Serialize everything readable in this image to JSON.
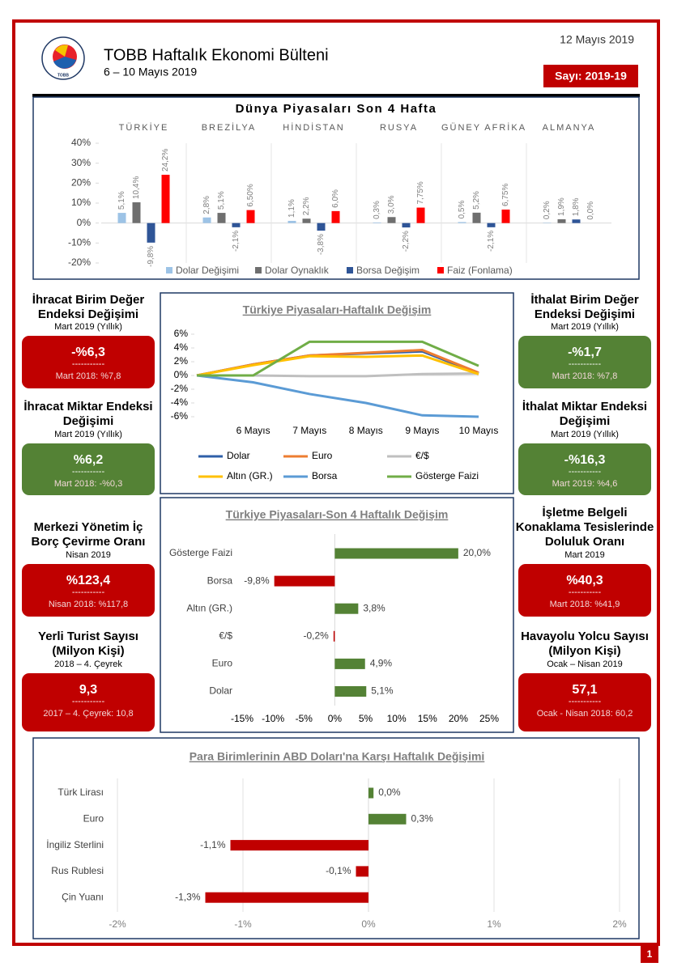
{
  "header": {
    "logo_text": "TOBB",
    "title": "TOBB Haftalık Ekonomi Bülteni",
    "subtitle": "6 – 10 Mayıs 2019",
    "date": "12 Mayıs 2019",
    "issue": "Sayı: 2019-19"
  },
  "chart_data": [
    {
      "type": "bar",
      "title": "Dünya Piyasaları Son 4 Hafta",
      "categories": [
        "TÜRKİYE",
        "BREZİLYA",
        "HİNDİSTAN",
        "RUSYA",
        "GÜNEY AFRİKA",
        "ALMANYA"
      ],
      "series": [
        {
          "name": "Dolar Değişimi",
          "color": "#9dc3e6",
          "values": [
            5.1,
            2.8,
            1.1,
            0.3,
            0.5,
            0.2
          ],
          "value_labels": [
            "5,1%",
            "2,8%",
            "1,1%",
            "0,3%",
            "0,5%",
            "0,2%"
          ]
        },
        {
          "name": "Dolar Oynaklık",
          "color": "#6f6f6f",
          "values": [
            10.4,
            5.1,
            2.2,
            3.0,
            5.2,
            1.9
          ],
          "value_labels": [
            "10,4%",
            "5,1%",
            "2,2%",
            "3,0%",
            "5,2%",
            "1,9%"
          ]
        },
        {
          "name": "Borsa Değişim",
          "color": "#2f5597",
          "values": [
            -9.8,
            -2.1,
            -3.8,
            -2.2,
            -2.1,
            1.8
          ],
          "value_labels": [
            "-9,8%",
            "-2,1%",
            "-3,8%",
            "-2,2%",
            "-2,1%",
            "1,8%"
          ]
        },
        {
          "name": "Faiz (Fonlama)",
          "color": "#ff0000",
          "values": [
            24.2,
            6.5,
            6.0,
            7.75,
            6.75,
            0.0
          ],
          "value_labels": [
            "24,2%",
            "6,50%",
            "6,0%",
            "7,75%",
            "6,75%",
            "0,0%"
          ]
        }
      ],
      "ylim": [
        -20,
        40
      ],
      "yticks": [
        {
          "value": 40,
          "label": "40%"
        },
        {
          "value": 30,
          "label": "30%"
        },
        {
          "value": 20,
          "label": "20%"
        },
        {
          "value": 10,
          "label": "10%"
        },
        {
          "value": 0,
          "label": "0%"
        },
        {
          "value": -10,
          "label": "-10%"
        },
        {
          "value": -20,
          "label": "-20%"
        }
      ]
    },
    {
      "type": "line",
      "title": "Türkiye Piyasaları-Haftalık Değişim",
      "categories": [
        null,
        "6 Mayıs",
        "7 Mayıs",
        "8 Mayıs",
        "9 Mayıs",
        "10 Mayıs"
      ],
      "series": [
        {
          "name": "Dolar",
          "color": "#2e5fa8",
          "values": [
            0,
            1.6,
            2.9,
            3.2,
            3.5,
            0.3
          ]
        },
        {
          "name": "Euro",
          "color": "#ed7d31",
          "values": [
            0,
            1.6,
            2.9,
            3.3,
            3.7,
            0.4
          ]
        },
        {
          "name": "€/$",
          "color": "#bfbfbf",
          "values": [
            0,
            0,
            -0.1,
            -0.1,
            0.2,
            0.3
          ]
        },
        {
          "name": "Altın (GR.)",
          "color": "#ffc000",
          "values": [
            0,
            1.5,
            2.8,
            2.7,
            2.9,
            0.2
          ]
        },
        {
          "name": "Borsa",
          "color": "#5b9bd5",
          "values": [
            0,
            -1.0,
            -2.7,
            -4.0,
            -5.8,
            -6.0
          ]
        },
        {
          "name": "Gösterge Faizi",
          "color": "#70ad47",
          "values": [
            0,
            0,
            4.9,
            4.9,
            4.9,
            1.4
          ]
        }
      ],
      "ylim": [
        -6,
        6
      ],
      "yticks": [
        {
          "value": 6,
          "label": "6%"
        },
        {
          "value": 4,
          "label": "4%"
        },
        {
          "value": 2,
          "label": "2%"
        },
        {
          "value": 0,
          "label": "0%"
        },
        {
          "value": -2,
          "label": "-2%"
        },
        {
          "value": -4,
          "label": "-4%"
        },
        {
          "value": -6,
          "label": "-6%"
        }
      ]
    },
    {
      "type": "hbar",
      "title": "Türkiye Piyasaları-Son 4 Haftalık Değişim",
      "categories": [
        "Gösterge Faizi",
        "Borsa",
        "Altın (GR.)",
        "€/$",
        "Euro",
        "Dolar"
      ],
      "values": [
        20.0,
        -9.8,
        3.8,
        -0.2,
        4.9,
        5.1
      ],
      "value_labels": [
        "20,0%",
        "-9,8%",
        "3,8%",
        "-0,2%",
        "4,9%",
        "5,1%"
      ],
      "positive_color": "#548235",
      "negative_color": "#c00000",
      "xlim": [
        -15,
        25
      ],
      "xticks": [
        {
          "value": -15,
          "label": "-15%"
        },
        {
          "value": -10,
          "label": "-10%"
        },
        {
          "value": -5,
          "label": "-5%"
        },
        {
          "value": 0,
          "label": "0%"
        },
        {
          "value": 5,
          "label": "5%"
        },
        {
          "value": 10,
          "label": "10%"
        },
        {
          "value": 15,
          "label": "15%"
        },
        {
          "value": 20,
          "label": "20%"
        },
        {
          "value": 25,
          "label": "25%"
        }
      ],
      "grid": false
    },
    {
      "type": "hbar",
      "title": "Para Birimlerinin ABD Doları'na Karşı Haftalık Değişimi",
      "categories": [
        "Türk Lirası",
        "Euro",
        "İngiliz Sterlini",
        "Rus Rublesi",
        "Çin Yuanı"
      ],
      "values": [
        0.04,
        0.3,
        -1.1,
        -0.1,
        -1.3
      ],
      "value_labels": [
        "0,0%",
        "0,3%",
        "-1,1%",
        "-0,1%",
        "-1,3%"
      ],
      "positive_color": "#548235",
      "negative_color": "#c00000",
      "xlim": [
        -2,
        2
      ],
      "xticks": [
        {
          "value": -2,
          "label": "-2%"
        },
        {
          "value": -1,
          "label": "-1%"
        },
        {
          "value": 0,
          "label": "0%"
        },
        {
          "value": 1,
          "label": "1%"
        },
        {
          "value": 2,
          "label": "2%"
        }
      ],
      "grid": true
    }
  ],
  "indicators": [
    {
      "title": "İhracat Birim Değer Endeksi Değişimi",
      "period": "Mart 2019  (Yıllık)",
      "value": "-%6,3",
      "divider": "-----------",
      "previous": "Mart 2018: %7,8",
      "color": "#c00000"
    },
    {
      "title": "İhracat Miktar Endeksi Değişimi",
      "period": "Mart 2019  (Yıllık)",
      "value": "%6,2",
      "divider": "-----------",
      "previous": "Mart 2018: -%0,3",
      "color": "#548235"
    },
    {
      "title": "Merkezi Yönetim İç Borç Çevirme Oranı",
      "period": "Nisan 2019",
      "value": "%123,4",
      "divider": "-----------",
      "previous": "Nisan 2018: %117,8",
      "color": "#c00000"
    },
    {
      "title": "Yerli Turist Sayısı (Milyon Kişi)",
      "period": "2018 – 4. Çeyrek",
      "value": "9,3",
      "divider": "-----------",
      "previous": "2017 – 4. Çeyrek: 10,8",
      "color": "#c00000"
    },
    {
      "title": "İthalat Birim Değer Endeksi Değişimi",
      "period": "Mart 2019  (Yıllık)",
      "value": "-%1,7",
      "divider": "-----------",
      "previous": "Mart 2018: %7,8",
      "color": "#548235"
    },
    {
      "title": "İthalat Miktar Endeksi Değişimi",
      "period": "Mart 2019  (Yıllık)",
      "value": "-%16,3",
      "divider": "-----------",
      "previous": "Mart 2019: %4,6",
      "color": "#548235"
    },
    {
      "title": "İşletme Belgeli Konaklama Tesislerinde Doluluk Oranı",
      "period": "Mart 2019",
      "value": "%40,3",
      "divider": "-----------",
      "previous": "Mart 2018: %41,9",
      "color": "#c00000"
    },
    {
      "title": "Havayolu Yolcu Sayısı (Milyon Kişi)",
      "period": "Ocak – Nisan 2019",
      "value": "57,1",
      "divider": "-----------",
      "previous": "Ocak -  Nisan 2018: 60,2",
      "color": "#c00000"
    }
  ],
  "page_number": "1"
}
